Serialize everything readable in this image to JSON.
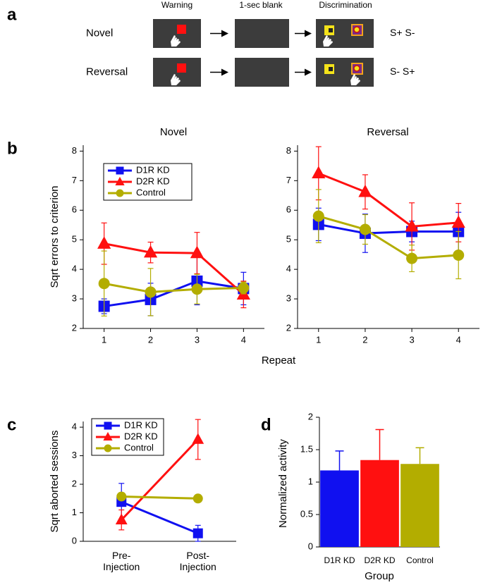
{
  "panel_a": {
    "label": "a",
    "headers": [
      "Warning",
      "1-sec blank",
      "Discrimination"
    ],
    "rows": [
      {
        "label": "Novel",
        "outcome": "S+ S-"
      },
      {
        "label": "Reversal",
        "outcome": "S- S+"
      }
    ]
  },
  "chart_data": [
    {
      "panel": "b",
      "type": "line",
      "title": "Novel",
      "ylabel": "Sqrt errors to criterion",
      "xlabel": "Repeat",
      "x": [
        1,
        2,
        3,
        4
      ],
      "xlim": [
        0.55,
        4.45
      ],
      "xticks": [
        1,
        2,
        3,
        4
      ],
      "ylim": [
        2,
        8.2
      ],
      "yticks": [
        2,
        3,
        4,
        5,
        6,
        7,
        8
      ],
      "legend": "upper left",
      "series": [
        {
          "name": "D1R KD",
          "color": "#1010f0",
          "marker": "square",
          "values": [
            2.75,
            2.98,
            3.6,
            3.35
          ],
          "errors": [
            0.25,
            0.55,
            0.8,
            0.55
          ]
        },
        {
          "name": "D2R KD",
          "color": "#ff1010",
          "marker": "triangle",
          "values": [
            4.87,
            4.57,
            4.55,
            3.15
          ],
          "errors": [
            0.7,
            0.35,
            0.7,
            0.45
          ]
        },
        {
          "name": "Control",
          "color": "#b3ad00",
          "marker": "circle",
          "values": [
            3.52,
            3.23,
            3.33,
            3.37
          ],
          "errors": [
            1.1,
            0.8,
            0.5,
            0.2
          ]
        }
      ]
    },
    {
      "type": "line",
      "title": "Reversal",
      "x": [
        1,
        2,
        3,
        4
      ],
      "xlim": [
        0.55,
        4.45
      ],
      "xticks": [
        1,
        2,
        3,
        4
      ],
      "ylim": [
        2,
        8.2
      ],
      "yticks": [
        2,
        3,
        4,
        5,
        6,
        7,
        8
      ],
      "series": [
        {
          "name": "D1R KD",
          "color": "#1010f0",
          "marker": "square",
          "values": [
            5.52,
            5.22,
            5.28,
            5.28
          ],
          "errors": [
            0.55,
            0.65,
            0.35,
            0.65
          ]
        },
        {
          "name": "D2R KD",
          "color": "#ff1010",
          "marker": "triangle",
          "values": [
            7.25,
            6.62,
            5.45,
            5.58
          ],
          "errors": [
            0.9,
            0.58,
            0.8,
            0.65
          ]
        },
        {
          "name": "Control",
          "color": "#b3ad00",
          "marker": "circle",
          "values": [
            5.8,
            5.35,
            4.37,
            4.48
          ],
          "errors": [
            0.9,
            0.5,
            0.45,
            0.8
          ]
        }
      ]
    },
    {
      "panel": "c",
      "type": "line",
      "ylabel": "Sqrt aborted sessions",
      "categories": [
        "Pre-\nInjection",
        "Post-\nInjection"
      ],
      "ylim": [
        0,
        4.2
      ],
      "yticks": [
        0,
        1,
        2,
        3,
        4
      ],
      "legend": "upper left",
      "series": [
        {
          "name": "D1R KD",
          "color": "#1010f0",
          "marker": "square",
          "values": [
            1.38,
            0.28
          ],
          "errors": [
            0.65,
            0.28
          ]
        },
        {
          "name": "D2R KD",
          "color": "#ff1010",
          "marker": "triangle",
          "values": [
            0.75,
            3.57
          ],
          "errors": [
            0.35,
            0.7
          ]
        },
        {
          "name": "Control",
          "color": "#b3ad00",
          "marker": "circle",
          "values": [
            1.57,
            1.5
          ],
          "errors": [
            0.1,
            0.05
          ]
        }
      ]
    },
    {
      "panel": "d",
      "type": "bar",
      "ylabel": "Normalized activity",
      "xlabel": "Group",
      "categories": [
        "D1R KD",
        "D2R KD",
        "Control"
      ],
      "values": [
        1.18,
        1.34,
        1.28
      ],
      "errors": [
        0.3,
        0.47,
        0.25
      ],
      "colors": [
        "#1010f0",
        "#ff1010",
        "#b3ad00"
      ],
      "ylim": [
        0,
        2
      ],
      "yticks": [
        0,
        0.5,
        1,
        1.5,
        2
      ]
    }
  ]
}
